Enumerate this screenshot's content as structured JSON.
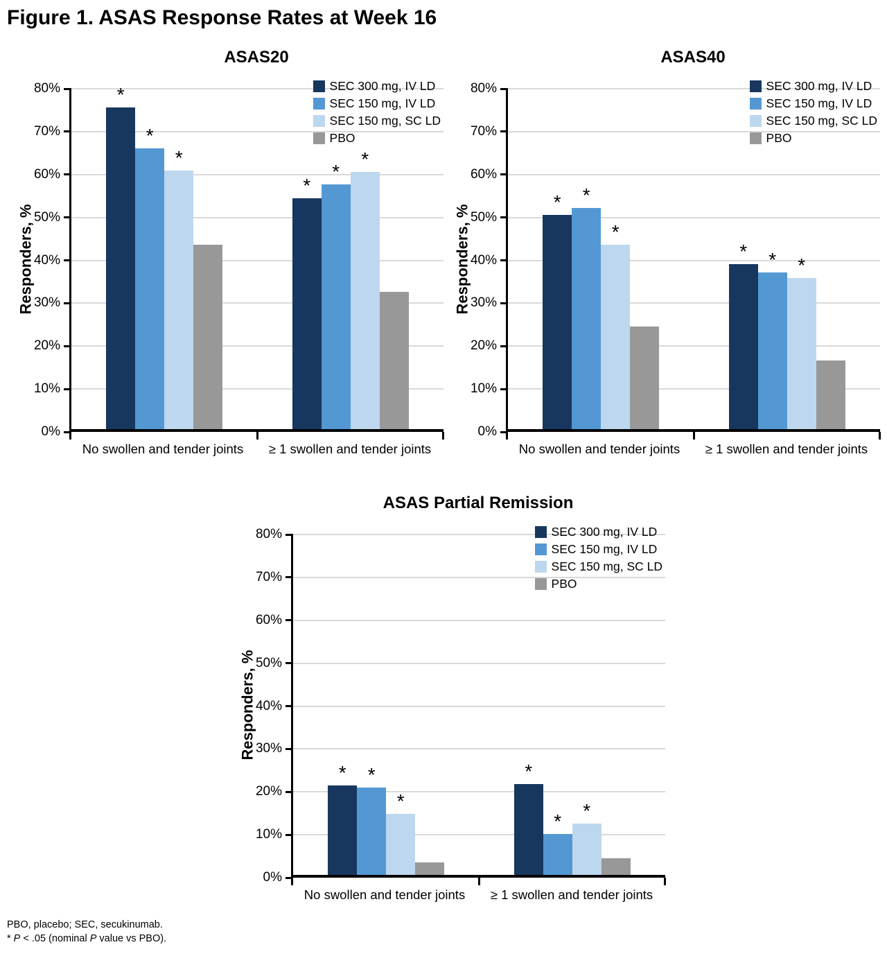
{
  "figure_title": "Figure 1. ASAS Response Rates at Week 16",
  "colors": {
    "sec300": "#17375E",
    "sec150iv": "#5498D3",
    "sec150sc": "#BDD7EE",
    "pbo": "#989898",
    "gridline": "#D9D9D9",
    "axis": "#000000",
    "background": "#FFFFFF"
  },
  "chart_data": [
    {
      "type": "bar",
      "title": "ASAS20",
      "ylabel": "Responders, %",
      "ylim": [
        0,
        80
      ],
      "ytick_step": 10,
      "ytick_suffix": "%",
      "grid": true,
      "legend_position": "top-right",
      "significance_marker": "*",
      "categories": [
        "No swollen and tender joints",
        "≥ 1 swollen and tender joints"
      ],
      "series": [
        {
          "name": "SEC 300 mg, IV LD",
          "color_key": "sec300",
          "values": [
            75.0,
            53.8
          ],
          "significant": [
            true,
            true
          ]
        },
        {
          "name": "SEC 150 mg, IV LD",
          "color_key": "sec150iv",
          "values": [
            65.5,
            57.0
          ],
          "significant": [
            true,
            true
          ]
        },
        {
          "name": "SEC 150 mg, SC LD",
          "color_key": "sec150sc",
          "values": [
            60.3,
            60.0
          ],
          "significant": [
            true,
            true
          ]
        },
        {
          "name": "PBO",
          "color_key": "pbo",
          "values": [
            43.0,
            32.0
          ],
          "significant": [
            false,
            false
          ]
        }
      ]
    },
    {
      "type": "bar",
      "title": "ASAS40",
      "ylabel": "Responders, %",
      "ylim": [
        0,
        80
      ],
      "ytick_step": 10,
      "ytick_suffix": "%",
      "grid": true,
      "legend_position": "top-right",
      "significance_marker": "*",
      "categories": [
        "No swollen and tender joints",
        "≥ 1 swollen and tender joints"
      ],
      "series": [
        {
          "name": "SEC 300 mg, IV LD",
          "color_key": "sec300",
          "values": [
            50.0,
            38.5
          ],
          "significant": [
            true,
            true
          ]
        },
        {
          "name": "SEC 150 mg, IV LD",
          "color_key": "sec150iv",
          "values": [
            51.5,
            36.5
          ],
          "significant": [
            true,
            true
          ]
        },
        {
          "name": "SEC 150 mg, SC LD",
          "color_key": "sec150sc",
          "values": [
            43.0,
            35.3
          ],
          "significant": [
            true,
            true
          ]
        },
        {
          "name": "PBO",
          "color_key": "pbo",
          "values": [
            24.0,
            16.0
          ],
          "significant": [
            false,
            false
          ]
        }
      ]
    },
    {
      "type": "bar",
      "title": "ASAS Partial Remission",
      "ylabel": "Responders, %",
      "ylim": [
        0,
        80
      ],
      "ytick_step": 10,
      "ytick_suffix": "%",
      "grid": true,
      "legend_position": "top-right",
      "significance_marker": "*",
      "categories": [
        "No swollen and tender joints",
        "≥ 1 swollen and tender joints"
      ],
      "series": [
        {
          "name": "SEC 300 mg, IV LD",
          "color_key": "sec300",
          "values": [
            20.8,
            21.2
          ],
          "significant": [
            true,
            true
          ]
        },
        {
          "name": "SEC 150 mg, IV LD",
          "color_key": "sec150iv",
          "values": [
            20.3,
            9.5
          ],
          "significant": [
            true,
            true
          ]
        },
        {
          "name": "SEC 150 mg, SC LD",
          "color_key": "sec150sc",
          "values": [
            14.3,
            12.0
          ],
          "significant": [
            true,
            true
          ]
        },
        {
          "name": "PBO",
          "color_key": "pbo",
          "values": [
            2.9,
            3.9
          ],
          "significant": [
            false,
            false
          ]
        }
      ]
    }
  ],
  "footnotes": {
    "line1": "PBO, placebo; SEC, secukinumab.",
    "line2_segments": [
      {
        "text": "* ",
        "italic": false
      },
      {
        "text": "P",
        "italic": true
      },
      {
        "text": " < .05 (nominal ",
        "italic": false
      },
      {
        "text": "P",
        "italic": true
      },
      {
        "text": " value vs PBO).",
        "italic": false
      }
    ]
  }
}
